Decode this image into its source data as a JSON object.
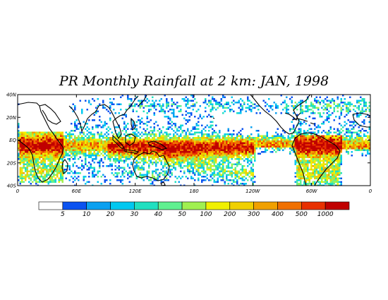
{
  "title": "PR Monthly Rainfall at 2 km: JAN, 1998",
  "map": {
    "lat_labels": [
      "40N",
      "20N",
      "EQ",
      "20S",
      "40S"
    ],
    "lon_labels": [
      "0",
      "60E",
      "120E",
      "180",
      "120W",
      "60W",
      "0"
    ]
  },
  "colorbar": {
    "labels": [
      "5",
      "10",
      "20",
      "30",
      "40",
      "50",
      "100",
      "200",
      "300",
      "400",
      "500",
      "1000"
    ],
    "colors": [
      "#ffffff",
      "#0a52f0",
      "#0aa0f0",
      "#00c8f0",
      "#20e0c0",
      "#60f090",
      "#a0f050",
      "#f0f000",
      "#f0d000",
      "#f0a000",
      "#f07000",
      "#e83000",
      "#c00000"
    ]
  },
  "colors": {
    "land_outline": "#000000",
    "ocean": "#ffffff",
    "frame": "#000000"
  }
}
